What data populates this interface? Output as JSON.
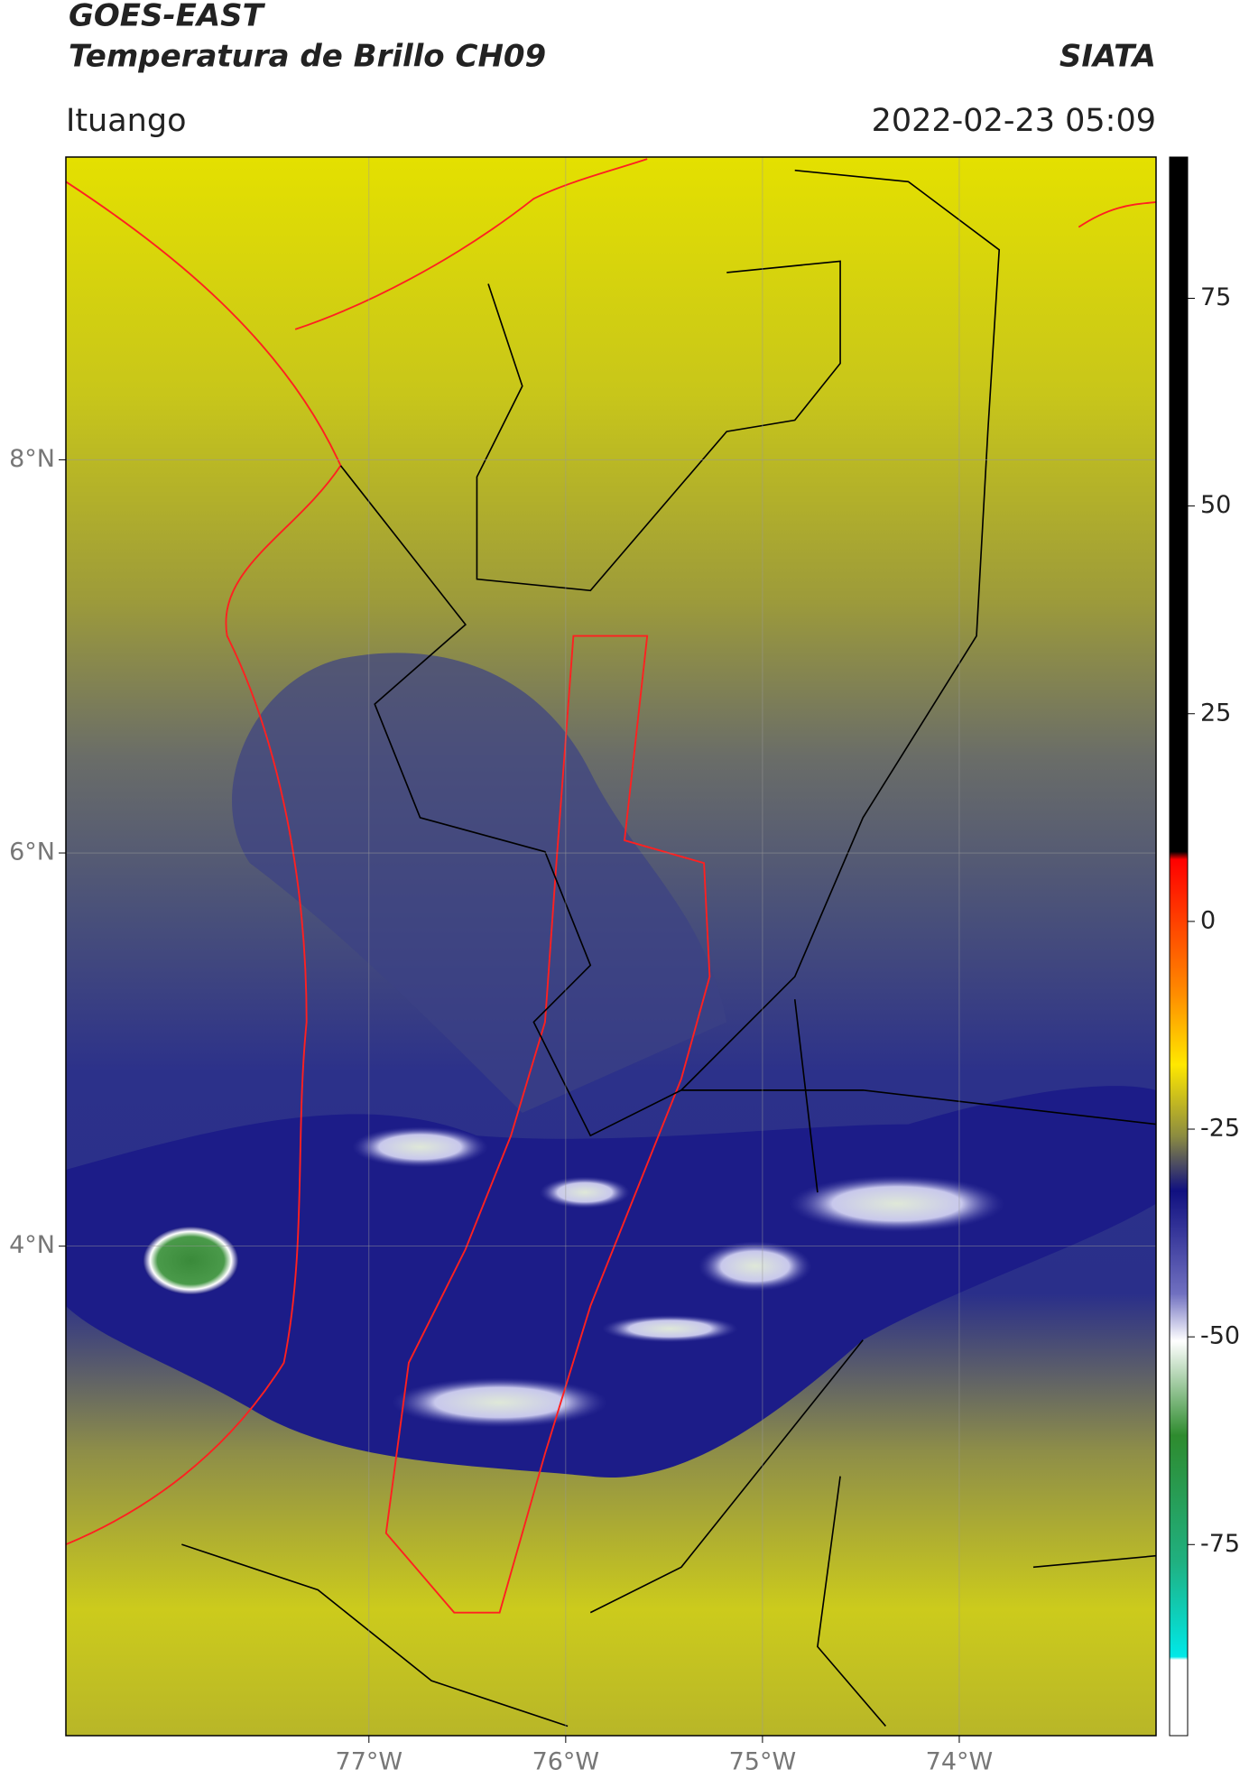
{
  "chart_data": {
    "type": "map",
    "title": "GOES-EAST",
    "subtitle": "Temperatura de Brillo CH09",
    "source": "SIATA",
    "location": "Ituango",
    "timestamp": "2022-02-23 05:09",
    "xlim": [
      -78.54,
      -73.0
    ],
    "ylim": [
      1.51,
      9.54
    ],
    "xticks": [
      {
        "value": -77,
        "label": "77°W"
      },
      {
        "value": -76,
        "label": "76°W"
      },
      {
        "value": -75,
        "label": "75°W"
      },
      {
        "value": -74,
        "label": "74°W"
      }
    ],
    "yticks": [
      {
        "value": 8,
        "label": "8°N"
      },
      {
        "value": 6,
        "label": "6°N"
      },
      {
        "value": 4,
        "label": "4°N"
      }
    ],
    "grid": true,
    "colorbar": {
      "lim": [
        -98,
        92
      ],
      "ticks": [
        75,
        50,
        25,
        0,
        -25,
        -50,
        -75
      ]
    }
  }
}
